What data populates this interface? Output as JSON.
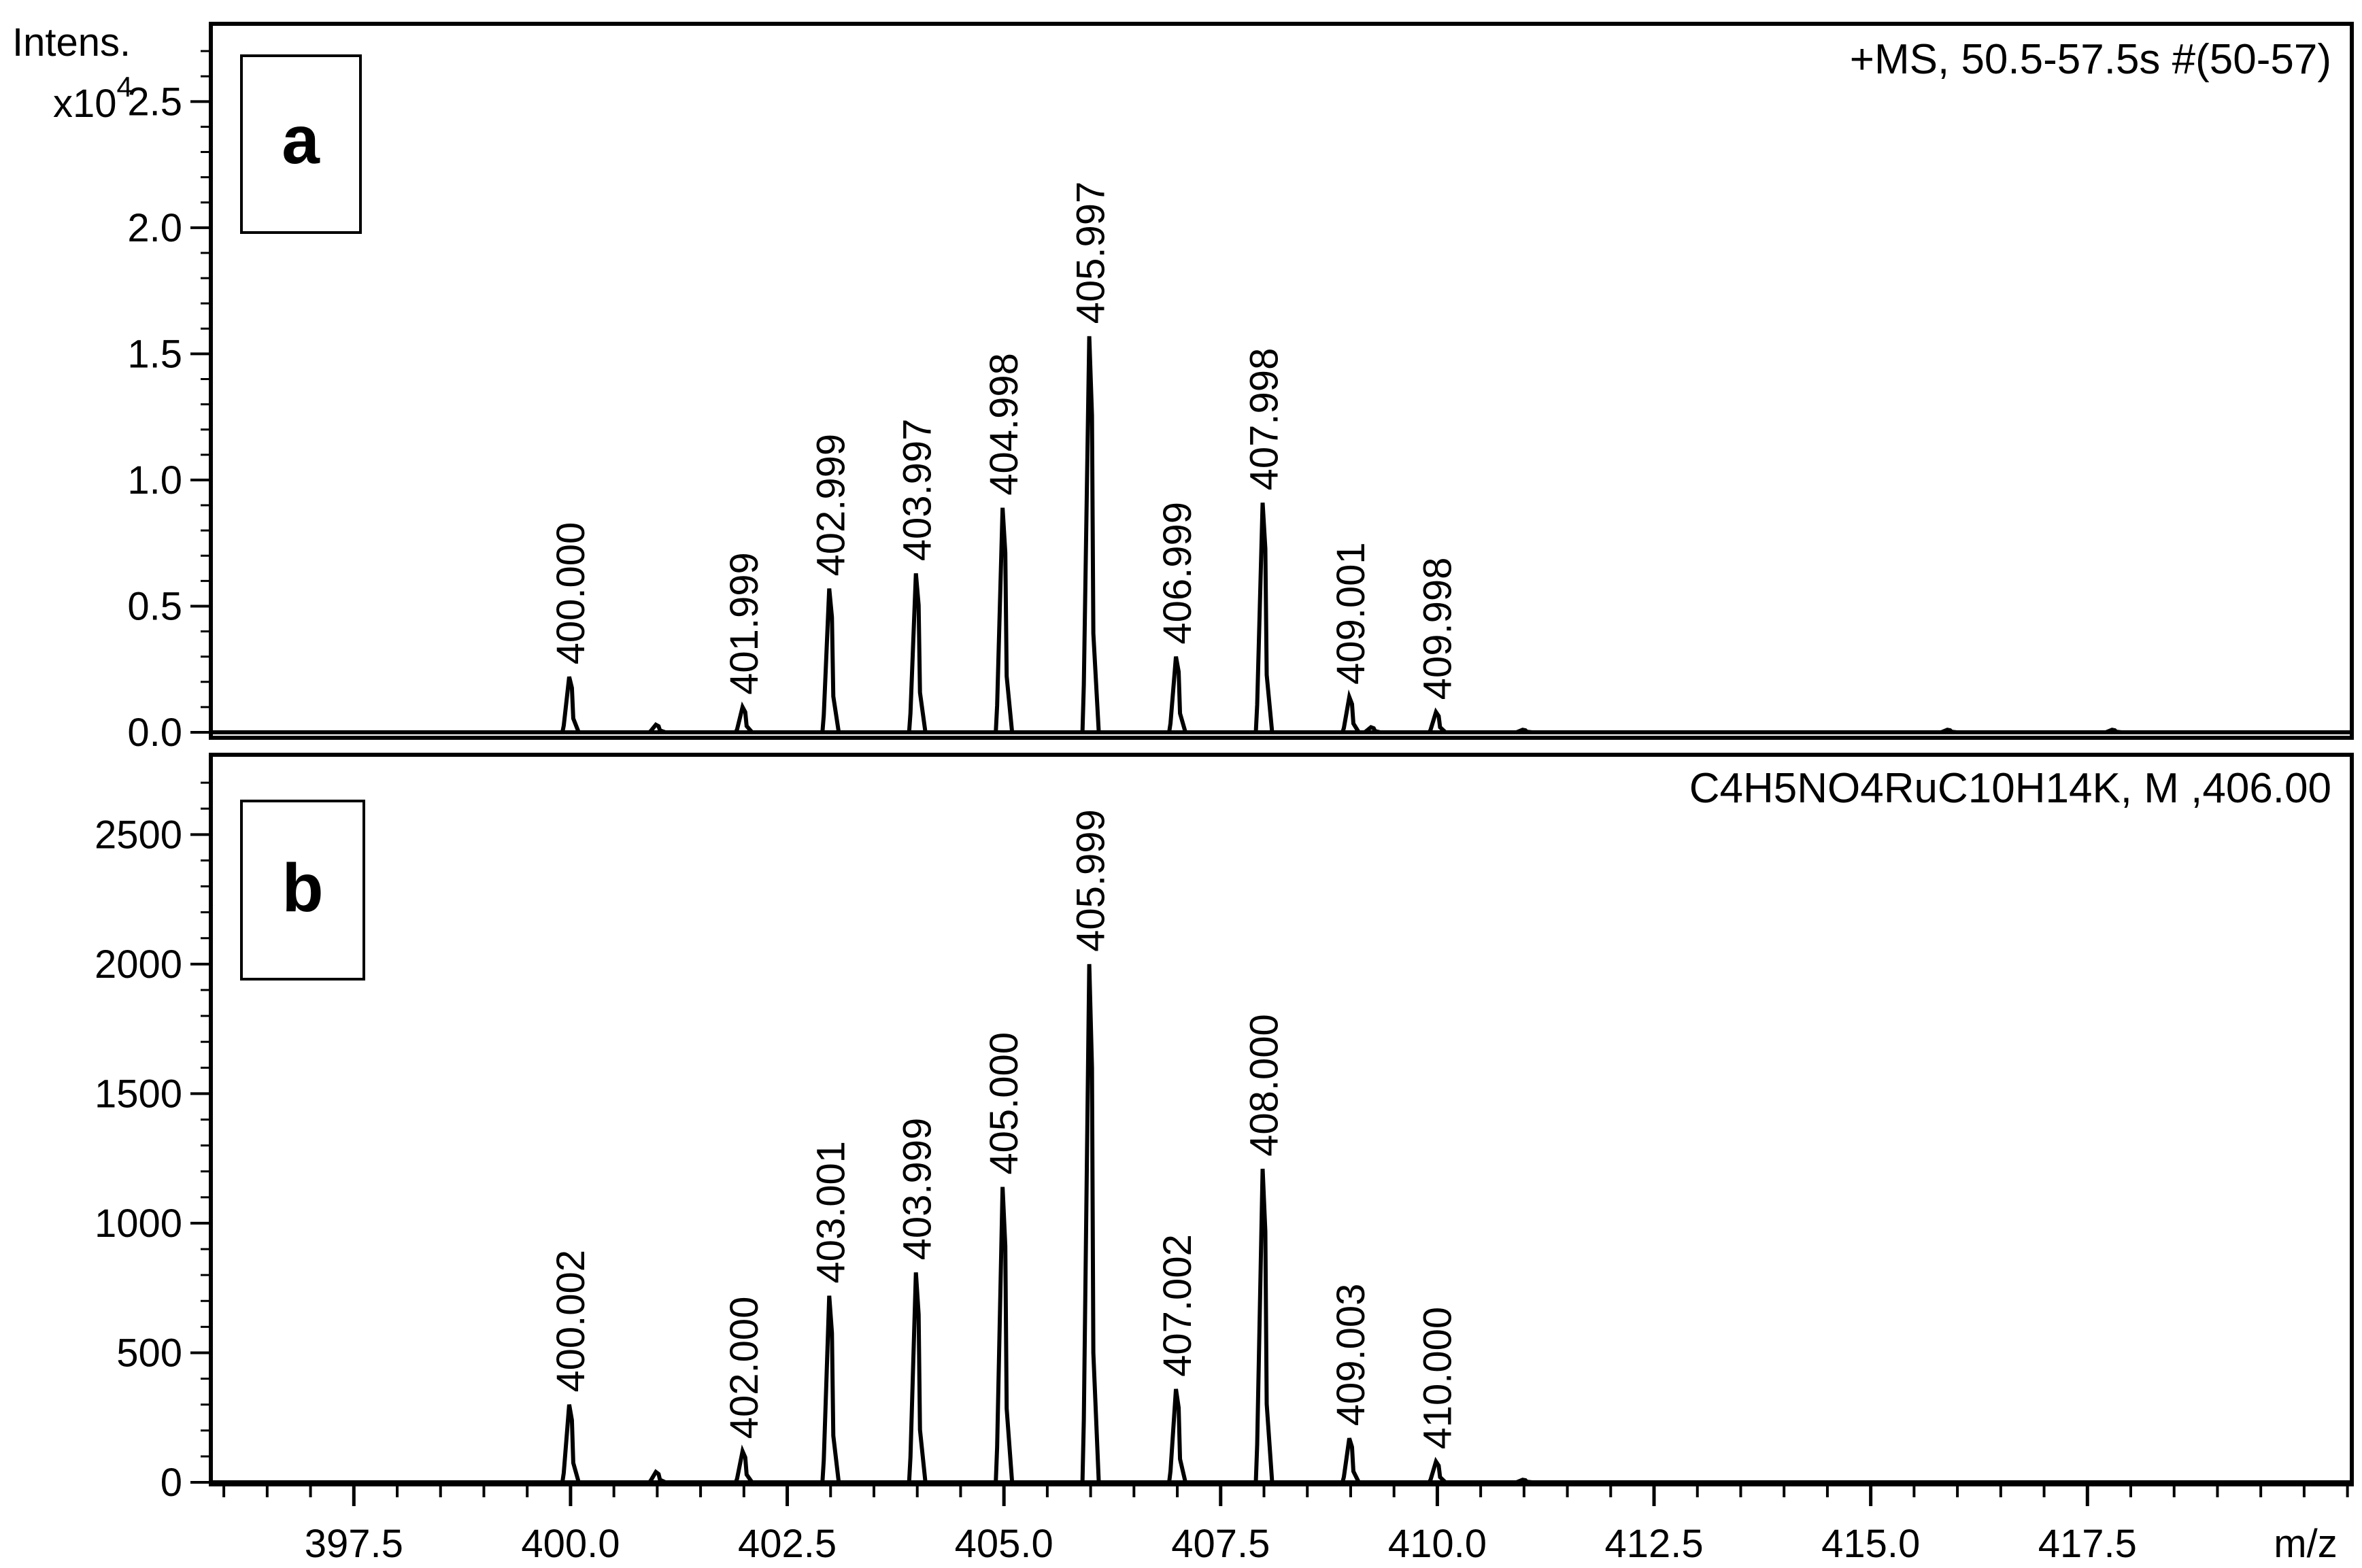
{
  "chart_data": [
    {
      "panel": "a",
      "type": "line",
      "subtype": "mass spectrum",
      "panel_label": "a",
      "header": "+MS, 50.5-57.5s #(50-57)",
      "ylabel_line1": "Intens.",
      "ylabel_line2": "x10",
      "ylabel_exponent": "4",
      "ylim": [
        0,
        2.8
      ],
      "yticks": [
        0.0,
        0.5,
        1.0,
        1.5,
        2.0,
        2.5
      ],
      "ytick_labels": [
        "0.0",
        "0.5",
        "1.0",
        "1.5",
        "2.0",
        "2.5"
      ],
      "peaks": [
        {
          "mz": 400.0,
          "intensity": 0.22,
          "label": "400.000"
        },
        {
          "mz": 401.0,
          "intensity": 0.03,
          "label": ""
        },
        {
          "mz": 402.0,
          "intensity": 0.1,
          "label": "401.999"
        },
        {
          "mz": 403.0,
          "intensity": 0.57,
          "label": "402.999"
        },
        {
          "mz": 404.0,
          "intensity": 0.63,
          "label": "403.997"
        },
        {
          "mz": 405.0,
          "intensity": 0.89,
          "label": "404.998"
        },
        {
          "mz": 406.0,
          "intensity": 1.57,
          "label": "405.997"
        },
        {
          "mz": 407.0,
          "intensity": 0.3,
          "label": "406.999"
        },
        {
          "mz": 408.0,
          "intensity": 0.91,
          "label": "407.998"
        },
        {
          "mz": 409.0,
          "intensity": 0.14,
          "label": "409.001"
        },
        {
          "mz": 409.25,
          "intensity": 0.02,
          "label": ""
        },
        {
          "mz": 410.0,
          "intensity": 0.08,
          "label": "409.998"
        },
        {
          "mz": 411.0,
          "intensity": 0.01,
          "label": ""
        },
        {
          "mz": 415.9,
          "intensity": 0.01,
          "label": ""
        },
        {
          "mz": 417.8,
          "intensity": 0.01,
          "label": ""
        }
      ]
    },
    {
      "panel": "b",
      "type": "line",
      "subtype": "simulated isotope pattern",
      "panel_label": "b",
      "header": "C4H5NO4RuC10H14K, M ,406.00",
      "ylim": [
        0,
        2800
      ],
      "yticks": [
        0,
        500,
        1000,
        1500,
        2000,
        2500
      ],
      "ytick_labels": [
        "0",
        "500",
        "1000",
        "1500",
        "2000",
        "2500"
      ],
      "peaks": [
        {
          "mz": 400.0,
          "intensity": 300,
          "label": "400.002"
        },
        {
          "mz": 401.0,
          "intensity": 40,
          "label": ""
        },
        {
          "mz": 402.0,
          "intensity": 120,
          "label": "402.000"
        },
        {
          "mz": 403.0,
          "intensity": 720,
          "label": "403.001"
        },
        {
          "mz": 404.0,
          "intensity": 810,
          "label": "403.999"
        },
        {
          "mz": 405.0,
          "intensity": 1140,
          "label": "405.000"
        },
        {
          "mz": 406.0,
          "intensity": 2000,
          "label": "405.999"
        },
        {
          "mz": 407.0,
          "intensity": 360,
          "label": "407.002"
        },
        {
          "mz": 408.0,
          "intensity": 1210,
          "label": "408.000"
        },
        {
          "mz": 409.0,
          "intensity": 170,
          "label": "409.003"
        },
        {
          "mz": 410.0,
          "intensity": 80,
          "label": "410.000"
        },
        {
          "mz": 411.0,
          "intensity": 10,
          "label": ""
        }
      ]
    }
  ],
  "xaxis": {
    "label": "m/z",
    "xlim": [
      395.85,
      420.55
    ],
    "ticks": [
      397.5,
      400.0,
      402.5,
      405.0,
      407.5,
      410.0,
      412.5,
      415.0,
      417.5
    ],
    "tick_labels": [
      "397.5",
      "400.0",
      "402.5",
      "405.0",
      "407.5",
      "410.0",
      "412.5",
      "415.0",
      "417.5"
    ],
    "minor_step": 0.5
  }
}
